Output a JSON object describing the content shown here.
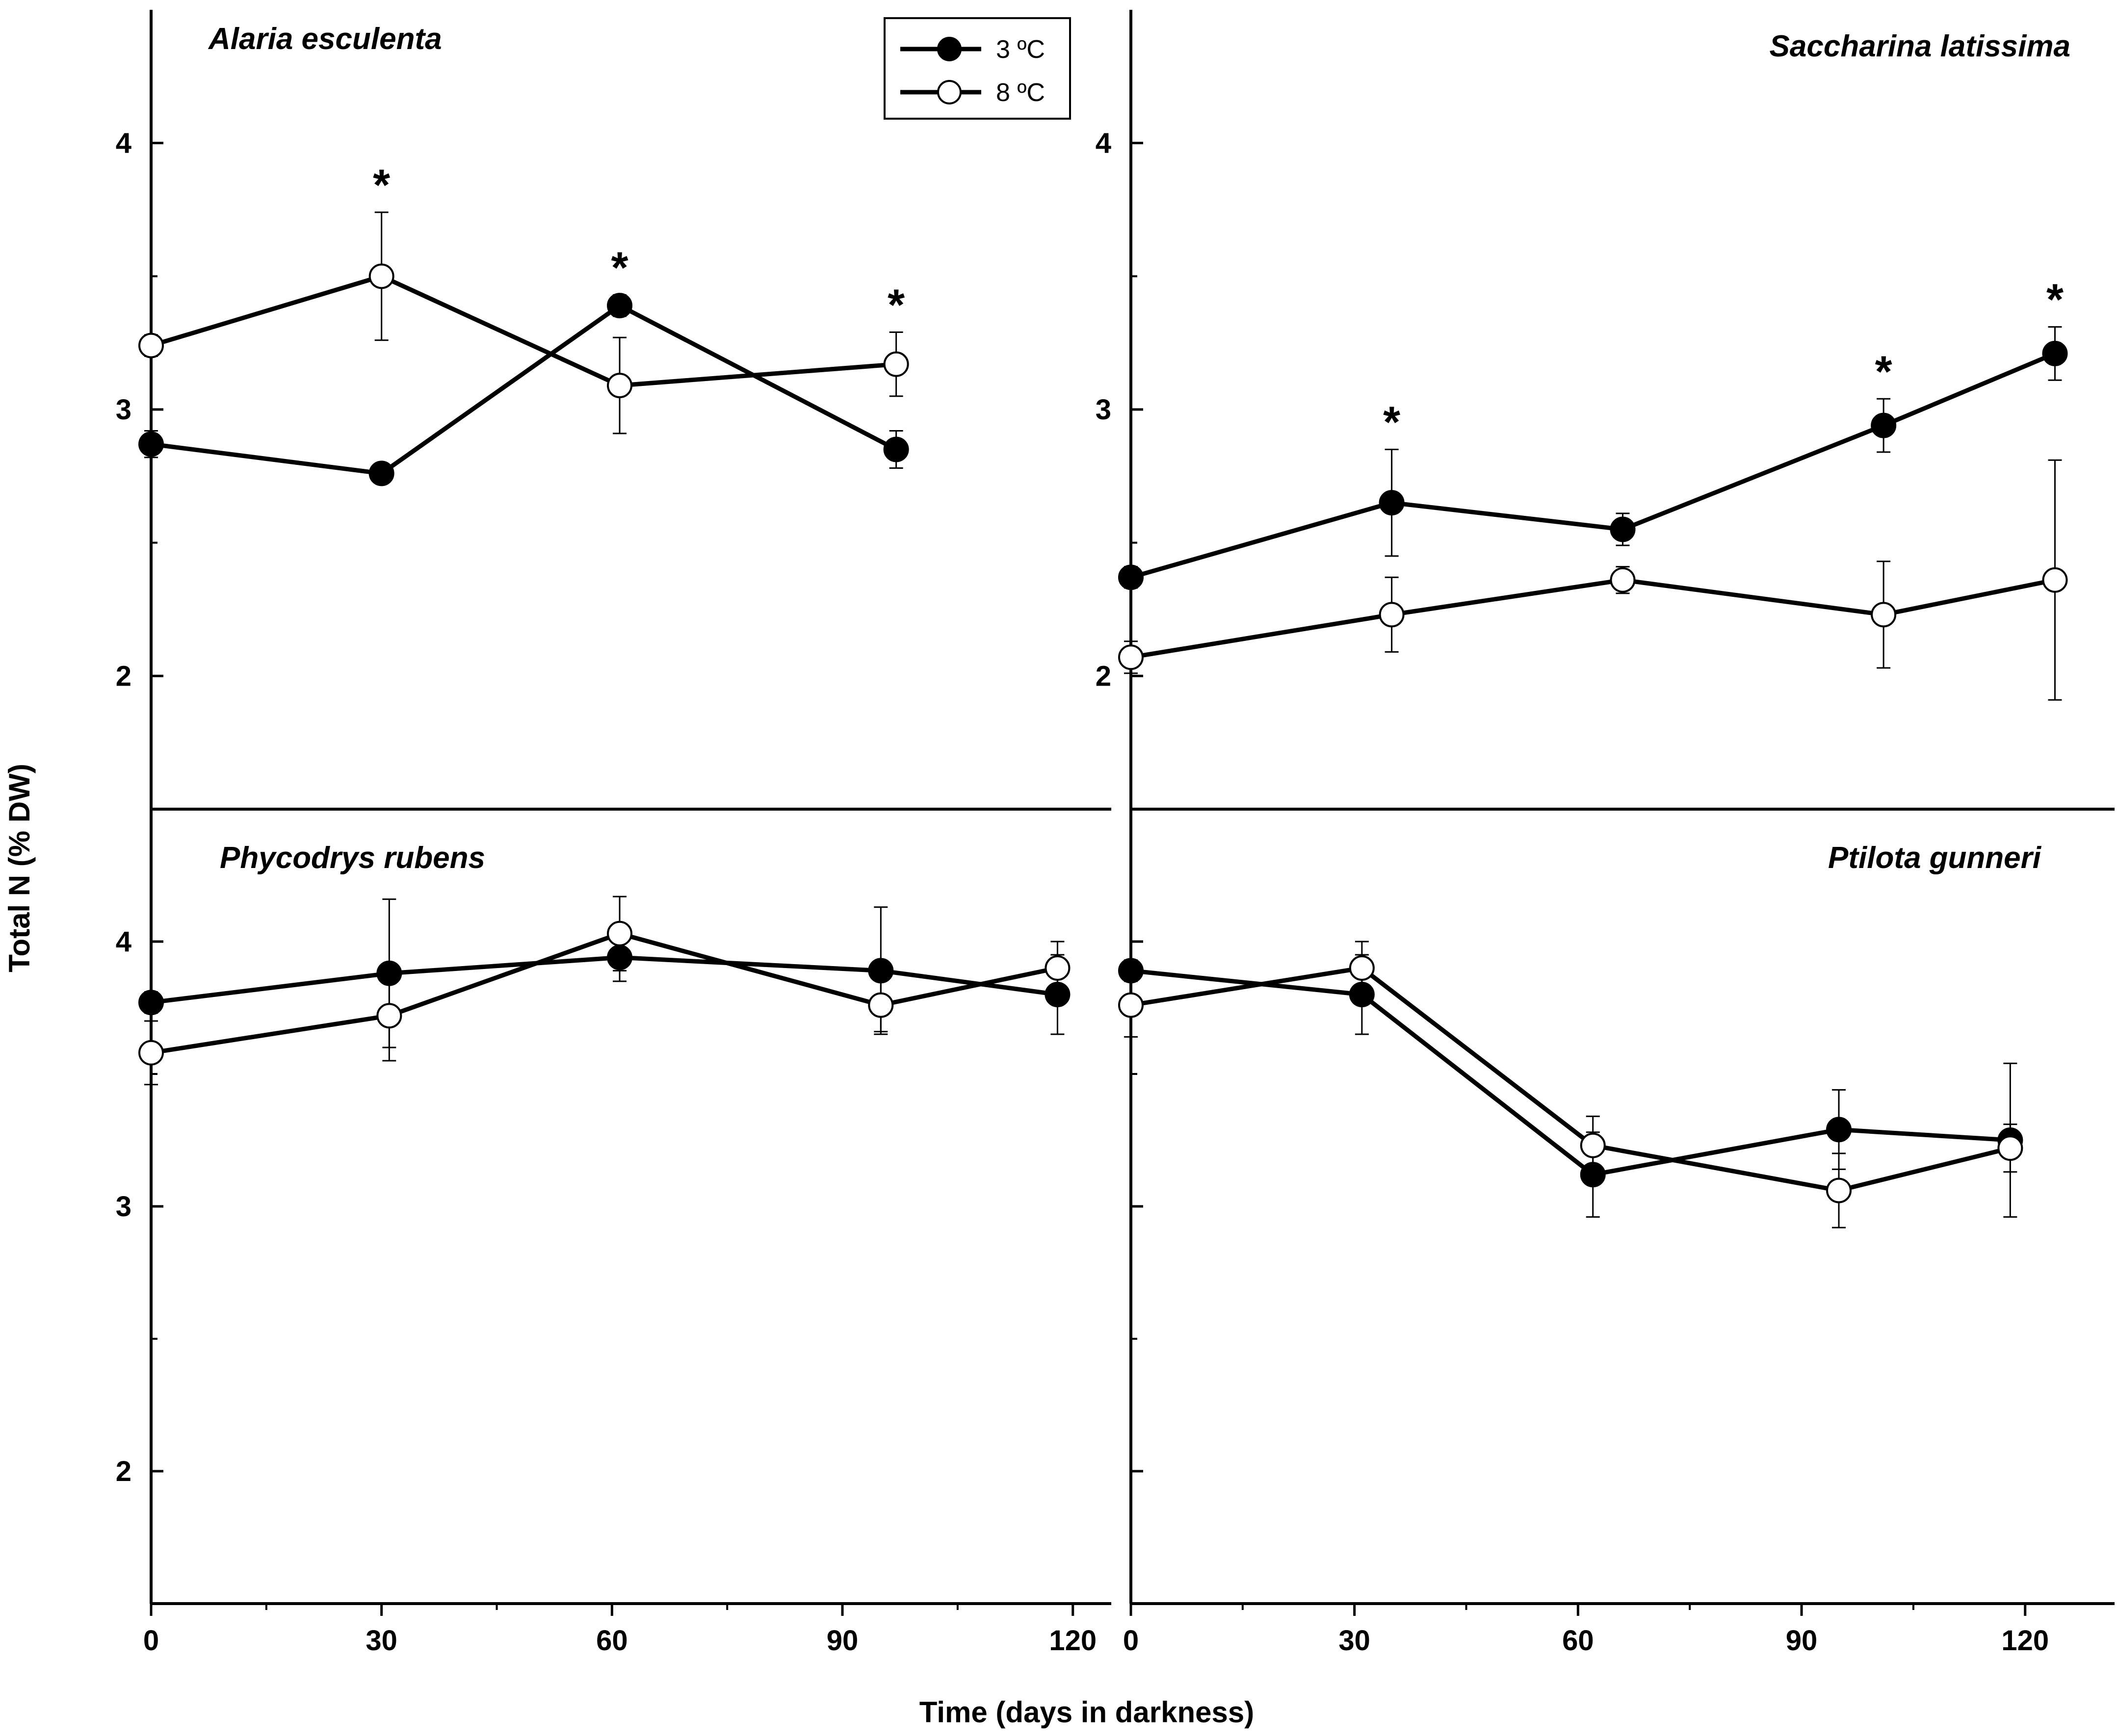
{
  "chart_data": {
    "type": "line",
    "ylabel": "Total N (% DW)",
    "xlabel": "Time (days in darkness)",
    "legend": {
      "position": "top-center",
      "entries": [
        {
          "label": "3 ºC",
          "marker": "filled-circle"
        },
        {
          "label": "8 ºC",
          "marker": "open-circle"
        }
      ]
    },
    "x_ticks": [
      0,
      30,
      60,
      90,
      120
    ],
    "significance_marker": "*",
    "panels": [
      {
        "title": "Alaria esculenta",
        "xlim": [
          0,
          125
        ],
        "ylim": [
          1.5,
          4.5
        ],
        "y_ticks": [
          2,
          3,
          4
        ],
        "series": [
          {
            "name": "3 ºC",
            "x": [
              0,
              30,
              61,
              97
            ],
            "y": [
              2.87,
              2.76,
              3.39,
              2.85
            ],
            "err": [
              0.05,
              0.02,
              0.04,
              0.07
            ]
          },
          {
            "name": "8 ºC",
            "x": [
              0,
              30,
              61,
              97
            ],
            "y": [
              3.24,
              3.5,
              3.09,
              3.17
            ],
            "err": [
              0.04,
              0.24,
              0.18,
              0.12
            ]
          }
        ],
        "significance_x": [
          30,
          61,
          97
        ]
      },
      {
        "title": "Saccharina latissima",
        "xlim": [
          0,
          132
        ],
        "ylim": [
          1.5,
          4.5
        ],
        "y_ticks": [
          2,
          3,
          4
        ],
        "series": [
          {
            "name": "3 ºC",
            "x": [
              0,
              35,
              66,
              101,
              124
            ],
            "y": [
              2.37,
              2.65,
              2.55,
              2.94,
              3.21
            ],
            "err": [
              0.04,
              0.2,
              0.06,
              0.1,
              0.1
            ]
          },
          {
            "name": "8 ºC",
            "x": [
              0,
              35,
              66,
              101,
              124
            ],
            "y": [
              2.07,
              2.23,
              2.36,
              2.23,
              2.36
            ],
            "err": [
              0.06,
              0.14,
              0.05,
              0.2,
              0.45
            ]
          }
        ],
        "significance_x": [
          35,
          101,
          124
        ]
      },
      {
        "title": "Phycodrys rubens",
        "xlim": [
          0,
          125
        ],
        "ylim": [
          1.5,
          4.5
        ],
        "y_ticks": [
          2,
          3,
          4
        ],
        "series": [
          {
            "name": "3 ºC",
            "x": [
              0,
              31,
              61,
              95,
              118
            ],
            "y": [
              3.77,
              3.88,
              3.94,
              3.89,
              3.8
            ],
            "err": [
              0.04,
              0.28,
              0.09,
              0.24,
              0.15
            ]
          },
          {
            "name": "8 ºC",
            "x": [
              0,
              31,
              61,
              95,
              118
            ],
            "y": [
              3.58,
              3.72,
              4.03,
              3.76,
              3.9
            ],
            "err": [
              0.12,
              0.17,
              0.14,
              0.1,
              0.1
            ]
          }
        ],
        "significance_x": []
      },
      {
        "title": "Ptilota gunneri",
        "xlim": [
          0,
          132
        ],
        "ylim": [
          1.5,
          4.5
        ],
        "y_ticks": [
          2,
          3,
          4
        ],
        "series": [
          {
            "name": "3 ºC",
            "x": [
              0,
              31,
              62,
              95,
              118
            ],
            "y": [
              3.89,
              3.8,
              3.12,
              3.29,
              3.25
            ],
            "err": [
              0.04,
              0.15,
              0.16,
              0.15,
              0.29
            ]
          },
          {
            "name": "8 ºC",
            "x": [
              0,
              31,
              62,
              95,
              118
            ],
            "y": [
              3.76,
              3.9,
              3.23,
              3.06,
              3.22
            ],
            "err": [
              0.12,
              0.1,
              0.11,
              0.14,
              0.09
            ]
          }
        ],
        "significance_x": []
      }
    ]
  }
}
